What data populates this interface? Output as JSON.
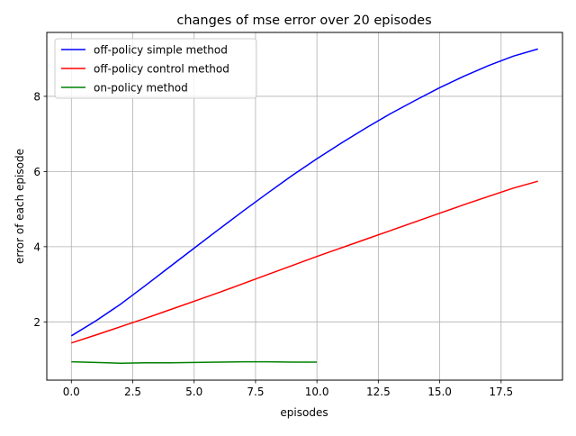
{
  "chart_data": {
    "type": "line",
    "title": "changes of mse error over 20 episodes",
    "xlabel": "episodes",
    "ylabel": "error of each episode",
    "xlim": [
      -1.0,
      20.0
    ],
    "ylim": [
      0.45,
      9.7
    ],
    "xticks": [
      0.0,
      2.5,
      5.0,
      7.5,
      10.0,
      12.5,
      15.0,
      17.5
    ],
    "xtick_labels": [
      "0.0",
      "2.5",
      "5.0",
      "7.5",
      "10.0",
      "12.5",
      "15.0",
      "17.5"
    ],
    "yticks": [
      2,
      4,
      6,
      8
    ],
    "ytick_labels": [
      "2",
      "4",
      "6",
      "8"
    ],
    "grid": true,
    "legend_position": "upper-left",
    "series": [
      {
        "name": "off-policy simple method",
        "color": "#0000ff",
        "x": [
          0,
          1,
          2,
          3,
          4,
          5,
          6,
          7,
          8,
          9,
          10,
          11,
          12,
          13,
          14,
          15,
          16,
          17,
          18,
          19
        ],
        "y": [
          1.63,
          2.03,
          2.47,
          2.96,
          3.46,
          3.96,
          4.46,
          4.95,
          5.43,
          5.9,
          6.34,
          6.76,
          7.16,
          7.54,
          7.89,
          8.23,
          8.54,
          8.82,
          9.07,
          9.26
        ]
      },
      {
        "name": "off-policy control method",
        "color": "#ff0000",
        "x": [
          0,
          1,
          2,
          3,
          4,
          5,
          6,
          7,
          8,
          9,
          10,
          11,
          12,
          13,
          14,
          15,
          16,
          17,
          18,
          19
        ],
        "y": [
          1.44,
          1.65,
          1.87,
          2.09,
          2.32,
          2.55,
          2.78,
          3.02,
          3.26,
          3.5,
          3.74,
          3.97,
          4.2,
          4.43,
          4.66,
          4.89,
          5.12,
          5.34,
          5.56,
          5.74
        ]
      },
      {
        "name": "on-policy method",
        "color": "#008000",
        "x": [
          0,
          1,
          2,
          3,
          4,
          5,
          6,
          7,
          8,
          9,
          10
        ],
        "y": [
          0.94,
          0.92,
          0.9,
          0.91,
          0.91,
          0.92,
          0.93,
          0.94,
          0.94,
          0.93,
          0.93
        ]
      }
    ]
  }
}
